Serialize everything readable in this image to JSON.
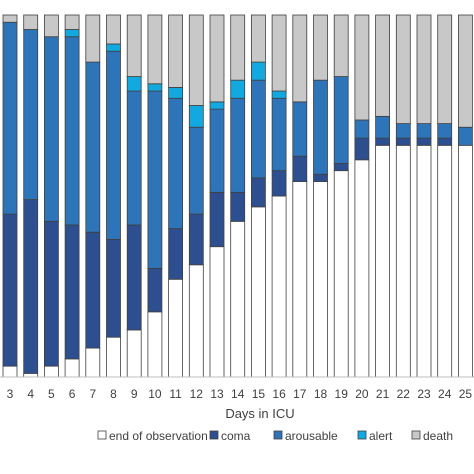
{
  "chart_data": {
    "type": "bar",
    "stacked": true,
    "percent": true,
    "xlabel": "Days in ICU",
    "ylabel": "",
    "ylim": [
      0,
      100
    ],
    "grid": false,
    "legend_position": "bottom",
    "categories": [
      "3",
      "4",
      "5",
      "6",
      "7",
      "8",
      "9",
      "10",
      "11",
      "12",
      "13",
      "14",
      "15",
      "16",
      "17",
      "18",
      "19",
      "20",
      "21",
      "22",
      "23",
      "24",
      "25"
    ],
    "series": [
      {
        "name": "end of observation",
        "color": "#ffffff",
        "values": [
          3,
          1,
          3,
          5,
          8,
          11,
          13,
          18,
          27,
          31,
          36,
          43,
          47,
          50,
          54,
          54,
          57,
          60,
          64,
          64,
          64,
          64,
          64
        ]
      },
      {
        "name": "coma",
        "color": "#2e4f8f",
        "values": [
          42,
          48,
          40,
          37,
          32,
          27,
          29,
          12,
          14,
          14,
          15,
          8,
          8,
          7,
          7,
          2,
          2,
          6,
          2,
          2,
          2,
          2,
          0
        ]
      },
      {
        "name": "arousable",
        "color": "#2e74b8",
        "values": [
          53,
          47,
          51,
          52,
          47,
          52,
          37,
          49,
          36,
          24,
          23,
          26,
          27,
          20,
          15,
          26,
          24,
          5,
          6,
          4,
          4,
          4,
          5
        ]
      },
      {
        "name": "alert",
        "color": "#12a8e0",
        "values": [
          0,
          0,
          0,
          2,
          0,
          2,
          4,
          2,
          3,
          6,
          2,
          5,
          5,
          2,
          0,
          0,
          0,
          0,
          0,
          0,
          0,
          0,
          0
        ]
      },
      {
        "name": "death",
        "color": "#c8c8c8",
        "values": [
          2,
          4,
          6,
          4,
          13,
          8,
          17,
          19,
          20,
          25,
          24,
          18,
          13,
          21,
          24,
          18,
          17,
          29,
          28,
          30,
          30,
          30,
          31
        ]
      }
    ]
  }
}
